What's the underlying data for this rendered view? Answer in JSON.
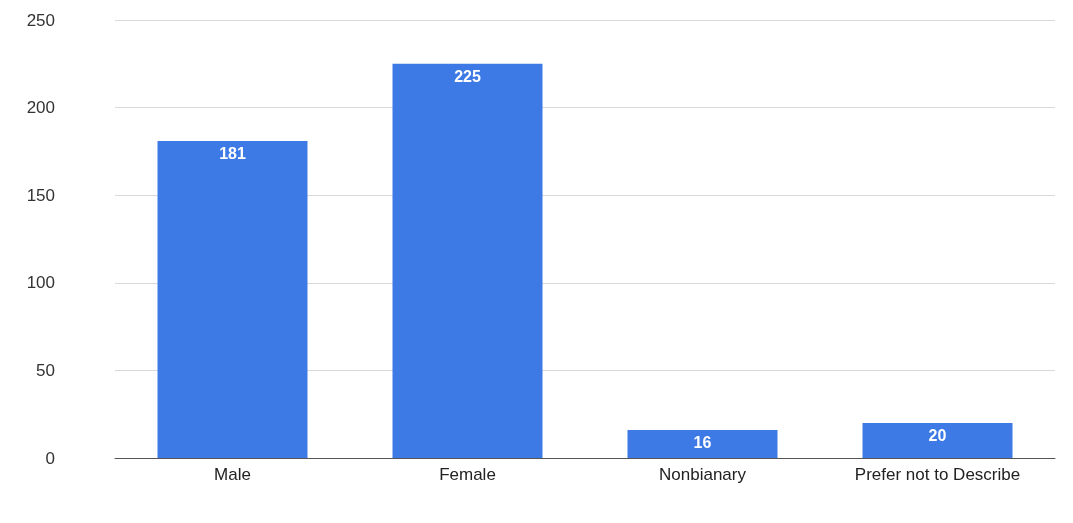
{
  "chart_data": {
    "type": "bar",
    "categories": [
      "Male",
      "Female",
      "Nonbianary",
      "Prefer not to Describe"
    ],
    "values": [
      181,
      225,
      16,
      20
    ],
    "color": "#3d7ae6",
    "ylim": [
      0,
      250
    ],
    "yticks": [
      0,
      50,
      100,
      150,
      200,
      250
    ],
    "grid": "y",
    "data_labels": true
  }
}
